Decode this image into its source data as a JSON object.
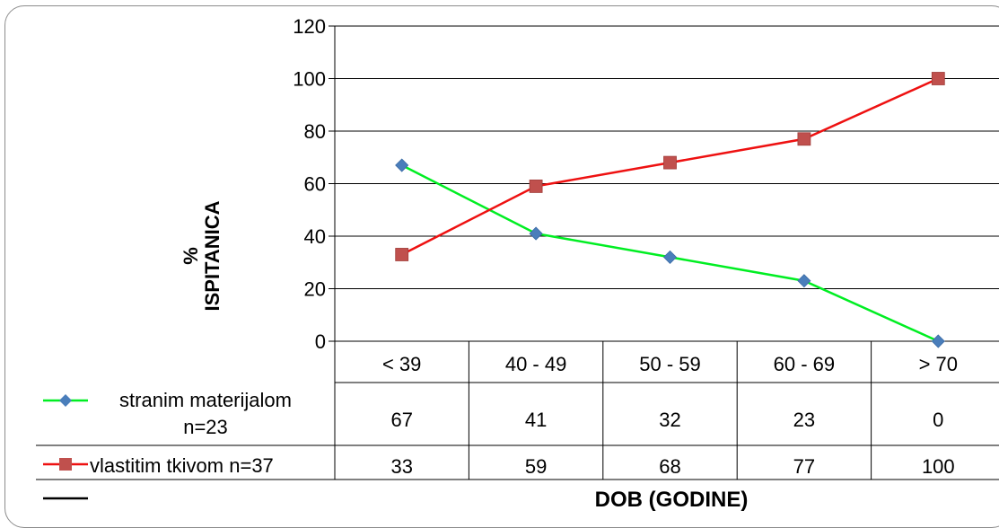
{
  "chart_data": {
    "type": "line",
    "categories": [
      "< 39",
      "40 - 49",
      "50 - 59",
      "60 - 69",
      "> 70"
    ],
    "series": [
      {
        "name": "stranim materijalom n=23",
        "legend_lines": [
          "stranim materijalom",
          "n=23"
        ],
        "values": [
          67,
          41,
          32,
          23,
          0
        ],
        "color": "#00ee22",
        "marker": "diamond",
        "marker_color": "#4a7ebb"
      },
      {
        "name": "vlastitim tkivom n=37",
        "legend_lines": [
          "vlastitim tkivom n=37"
        ],
        "values": [
          33,
          59,
          68,
          77,
          100
        ],
        "color": "#ee1111",
        "marker": "square",
        "marker_color": "#c0504d"
      }
    ],
    "table_values": [
      [
        "67",
        "41",
        "32",
        "23",
        "0"
      ],
      [
        "33",
        "59",
        "68",
        "77",
        "100"
      ]
    ],
    "ylabel_lines": [
      "%",
      "ISPITANICA"
    ],
    "xlabel": "DOB (GODINE)",
    "ylim": [
      0,
      120
    ],
    "yticks": [
      "0",
      "20",
      "40",
      "60",
      "80",
      "100",
      "120"
    ],
    "grid": true,
    "legend": "data-table"
  }
}
